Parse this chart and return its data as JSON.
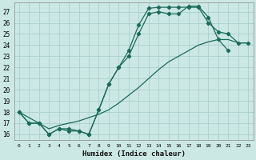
{
  "xlabel": "Humidex (Indice chaleur)",
  "xlim": [
    -0.5,
    23.5
  ],
  "ylim": [
    15.5,
    27.8
  ],
  "yticks": [
    16,
    17,
    18,
    19,
    20,
    21,
    22,
    23,
    24,
    25,
    26,
    27
  ],
  "xticks": [
    0,
    1,
    2,
    3,
    4,
    5,
    6,
    7,
    8,
    9,
    10,
    11,
    12,
    13,
    14,
    15,
    16,
    17,
    18,
    19,
    20,
    21,
    22,
    23
  ],
  "bg_color": "#cce8e4",
  "grid_color": "#aacfca",
  "line_color": "#1a6b5a",
  "line1_x": [
    0,
    1,
    2,
    3,
    4,
    5,
    6,
    7,
    8,
    9,
    10,
    11,
    12,
    13,
    14,
    15,
    16,
    17,
    18,
    19,
    20,
    21,
    22,
    23
  ],
  "line1_y": [
    18,
    17,
    17,
    16,
    16.5,
    16.5,
    16.3,
    16,
    18.2,
    20.5,
    22,
    23.5,
    25.8,
    27.3,
    27.4,
    27.4,
    27.4,
    27.4,
    27.4,
    26,
    25.2,
    25,
    24.2,
    24.2
  ],
  "line2_x": [
    0,
    1,
    2,
    3,
    4,
    5,
    6,
    7,
    8,
    9,
    10,
    11,
    12,
    13,
    14,
    15,
    16,
    17,
    18,
    19,
    20,
    21,
    22,
    23
  ],
  "line2_y": [
    18,
    17,
    17,
    16,
    16.5,
    16.3,
    16.3,
    16,
    18.2,
    20.5,
    22,
    23,
    25,
    26.8,
    27,
    26.8,
    26.8,
    27.5,
    27.5,
    26.5,
    24.5,
    23.5,
    null,
    null
  ],
  "line3_x": [
    0,
    1,
    2,
    3,
    4,
    5,
    6,
    7,
    8,
    9,
    10,
    11,
    12,
    13,
    14,
    15,
    16,
    17,
    18,
    19,
    20,
    21,
    22,
    23
  ],
  "line3_y": [
    18,
    17.5,
    17,
    16.5,
    16.8,
    17,
    17.2,
    17.5,
    17.8,
    18.2,
    18.8,
    19.5,
    20.2,
    21,
    21.8,
    22.5,
    23,
    23.5,
    24,
    24.3,
    24.5,
    24.5,
    24.2,
    24.2
  ]
}
